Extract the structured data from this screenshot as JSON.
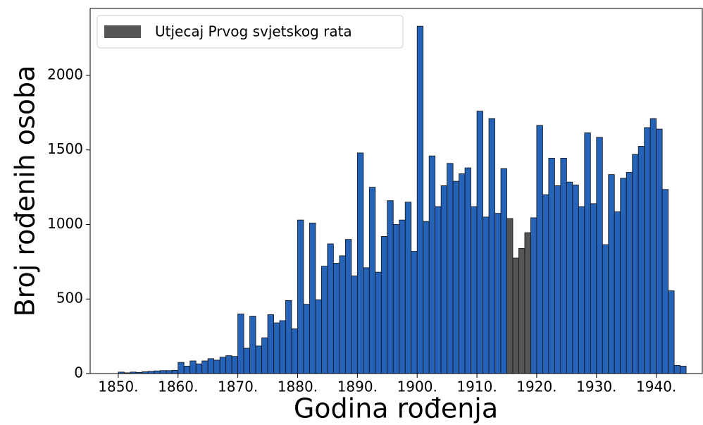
{
  "chart_data": {
    "type": "histogram",
    "xlabel": "Godina rođenja",
    "ylabel": "Broj rođenih osoba",
    "bins": [
      1850,
      1851,
      1852,
      1853,
      1854,
      1855,
      1856,
      1857,
      1858,
      1859,
      1860,
      1861,
      1862,
      1863,
      1864,
      1865,
      1866,
      1867,
      1868,
      1869,
      1870,
      1871,
      1872,
      1873,
      1874,
      1875,
      1876,
      1877,
      1878,
      1879,
      1880,
      1881,
      1882,
      1883,
      1884,
      1885,
      1886,
      1887,
      1888,
      1889,
      1890,
      1891,
      1892,
      1893,
      1894,
      1895,
      1896,
      1897,
      1898,
      1899,
      1900,
      1901,
      1902,
      1903,
      1904,
      1905,
      1906,
      1907,
      1908,
      1909,
      1910,
      1911,
      1912,
      1913,
      1914,
      1915,
      1916,
      1917,
      1918,
      1919,
      1920,
      1921,
      1922,
      1923,
      1924,
      1925,
      1926,
      1927,
      1928,
      1929,
      1930,
      1931,
      1932,
      1933,
      1934,
      1935,
      1936,
      1937,
      1938,
      1939,
      1940,
      1941,
      1942,
      1943,
      1944,
      1945
    ],
    "values": [
      10,
      5,
      10,
      8,
      12,
      15,
      18,
      20,
      20,
      22,
      75,
      50,
      85,
      65,
      85,
      100,
      90,
      110,
      120,
      115,
      400,
      170,
      385,
      185,
      240,
      395,
      340,
      355,
      490,
      300,
      1030,
      465,
      1010,
      495,
      720,
      870,
      740,
      790,
      900,
      655,
      1480,
      710,
      1250,
      680,
      920,
      1160,
      1000,
      1030,
      1150,
      820,
      2330,
      1020,
      1460,
      1120,
      1260,
      1410,
      1290,
      1340,
      1380,
      1120,
      1760,
      1050,
      1710,
      1075,
      1375,
      1040,
      775,
      840,
      945,
      1045,
      1665,
      1200,
      1445,
      1260,
      1445,
      1285,
      1265,
      1120,
      1615,
      1140,
      1585,
      865,
      1335,
      1085,
      1310,
      1350,
      1470,
      1525,
      1650,
      1710,
      1640,
      1235,
      555,
      55,
      50
    ],
    "color": "#2563b8",
    "highlight": {
      "label": "Utjecaj Prvog svjetskog rata",
      "color": "#555555",
      "from": 1915,
      "to": 1919
    },
    "legend": "upper left",
    "xlim": [
      1845.3,
      1947.7
    ],
    "ylim": [
      0,
      2449
    ],
    "xticks": [
      {
        "value": 1850,
        "label": "1850."
      },
      {
        "value": 1860,
        "label": "1860."
      },
      {
        "value": 1870,
        "label": "1870."
      },
      {
        "value": 1880,
        "label": "1880."
      },
      {
        "value": 1890,
        "label": "1890."
      },
      {
        "value": 1900,
        "label": "1900."
      },
      {
        "value": 1910,
        "label": "1910."
      },
      {
        "value": 1920,
        "label": "1920."
      },
      {
        "value": 1930,
        "label": "1930."
      },
      {
        "value": 1940,
        "label": "1940."
      }
    ],
    "yticks": [
      0,
      500,
      1000,
      1500,
      2000
    ]
  }
}
